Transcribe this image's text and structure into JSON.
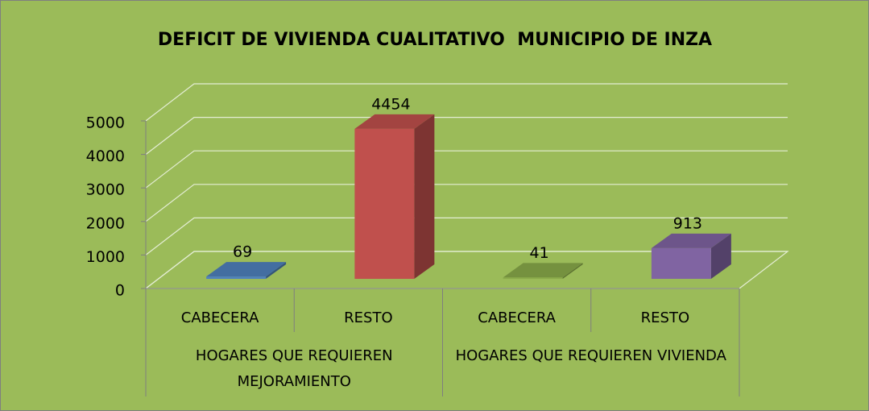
{
  "chart_data": {
    "type": "bar3d",
    "title": "DEFICIT DE VIVIENDA CUALITATIVO  MUNICIPIO DE INZA",
    "categories": [
      "CABECERA",
      "RESTO",
      "CABECERA",
      "RESTO"
    ],
    "groups": [
      "HOGARES QUE REQUIEREN MEJORAMIENTO",
      "HOGARES QUE REQUIEREN VIVIENDA"
    ],
    "values": [
      69,
      4454,
      41,
      913
    ],
    "colors": [
      "#4f81bd",
      "#c0504d",
      "#8aab4a",
      "#8064a2"
    ],
    "background": "#9bbb59",
    "ylim": [
      0,
      5000
    ],
    "yticks": [
      0,
      1000,
      2000,
      3000,
      4000,
      5000
    ],
    "grid": true
  }
}
